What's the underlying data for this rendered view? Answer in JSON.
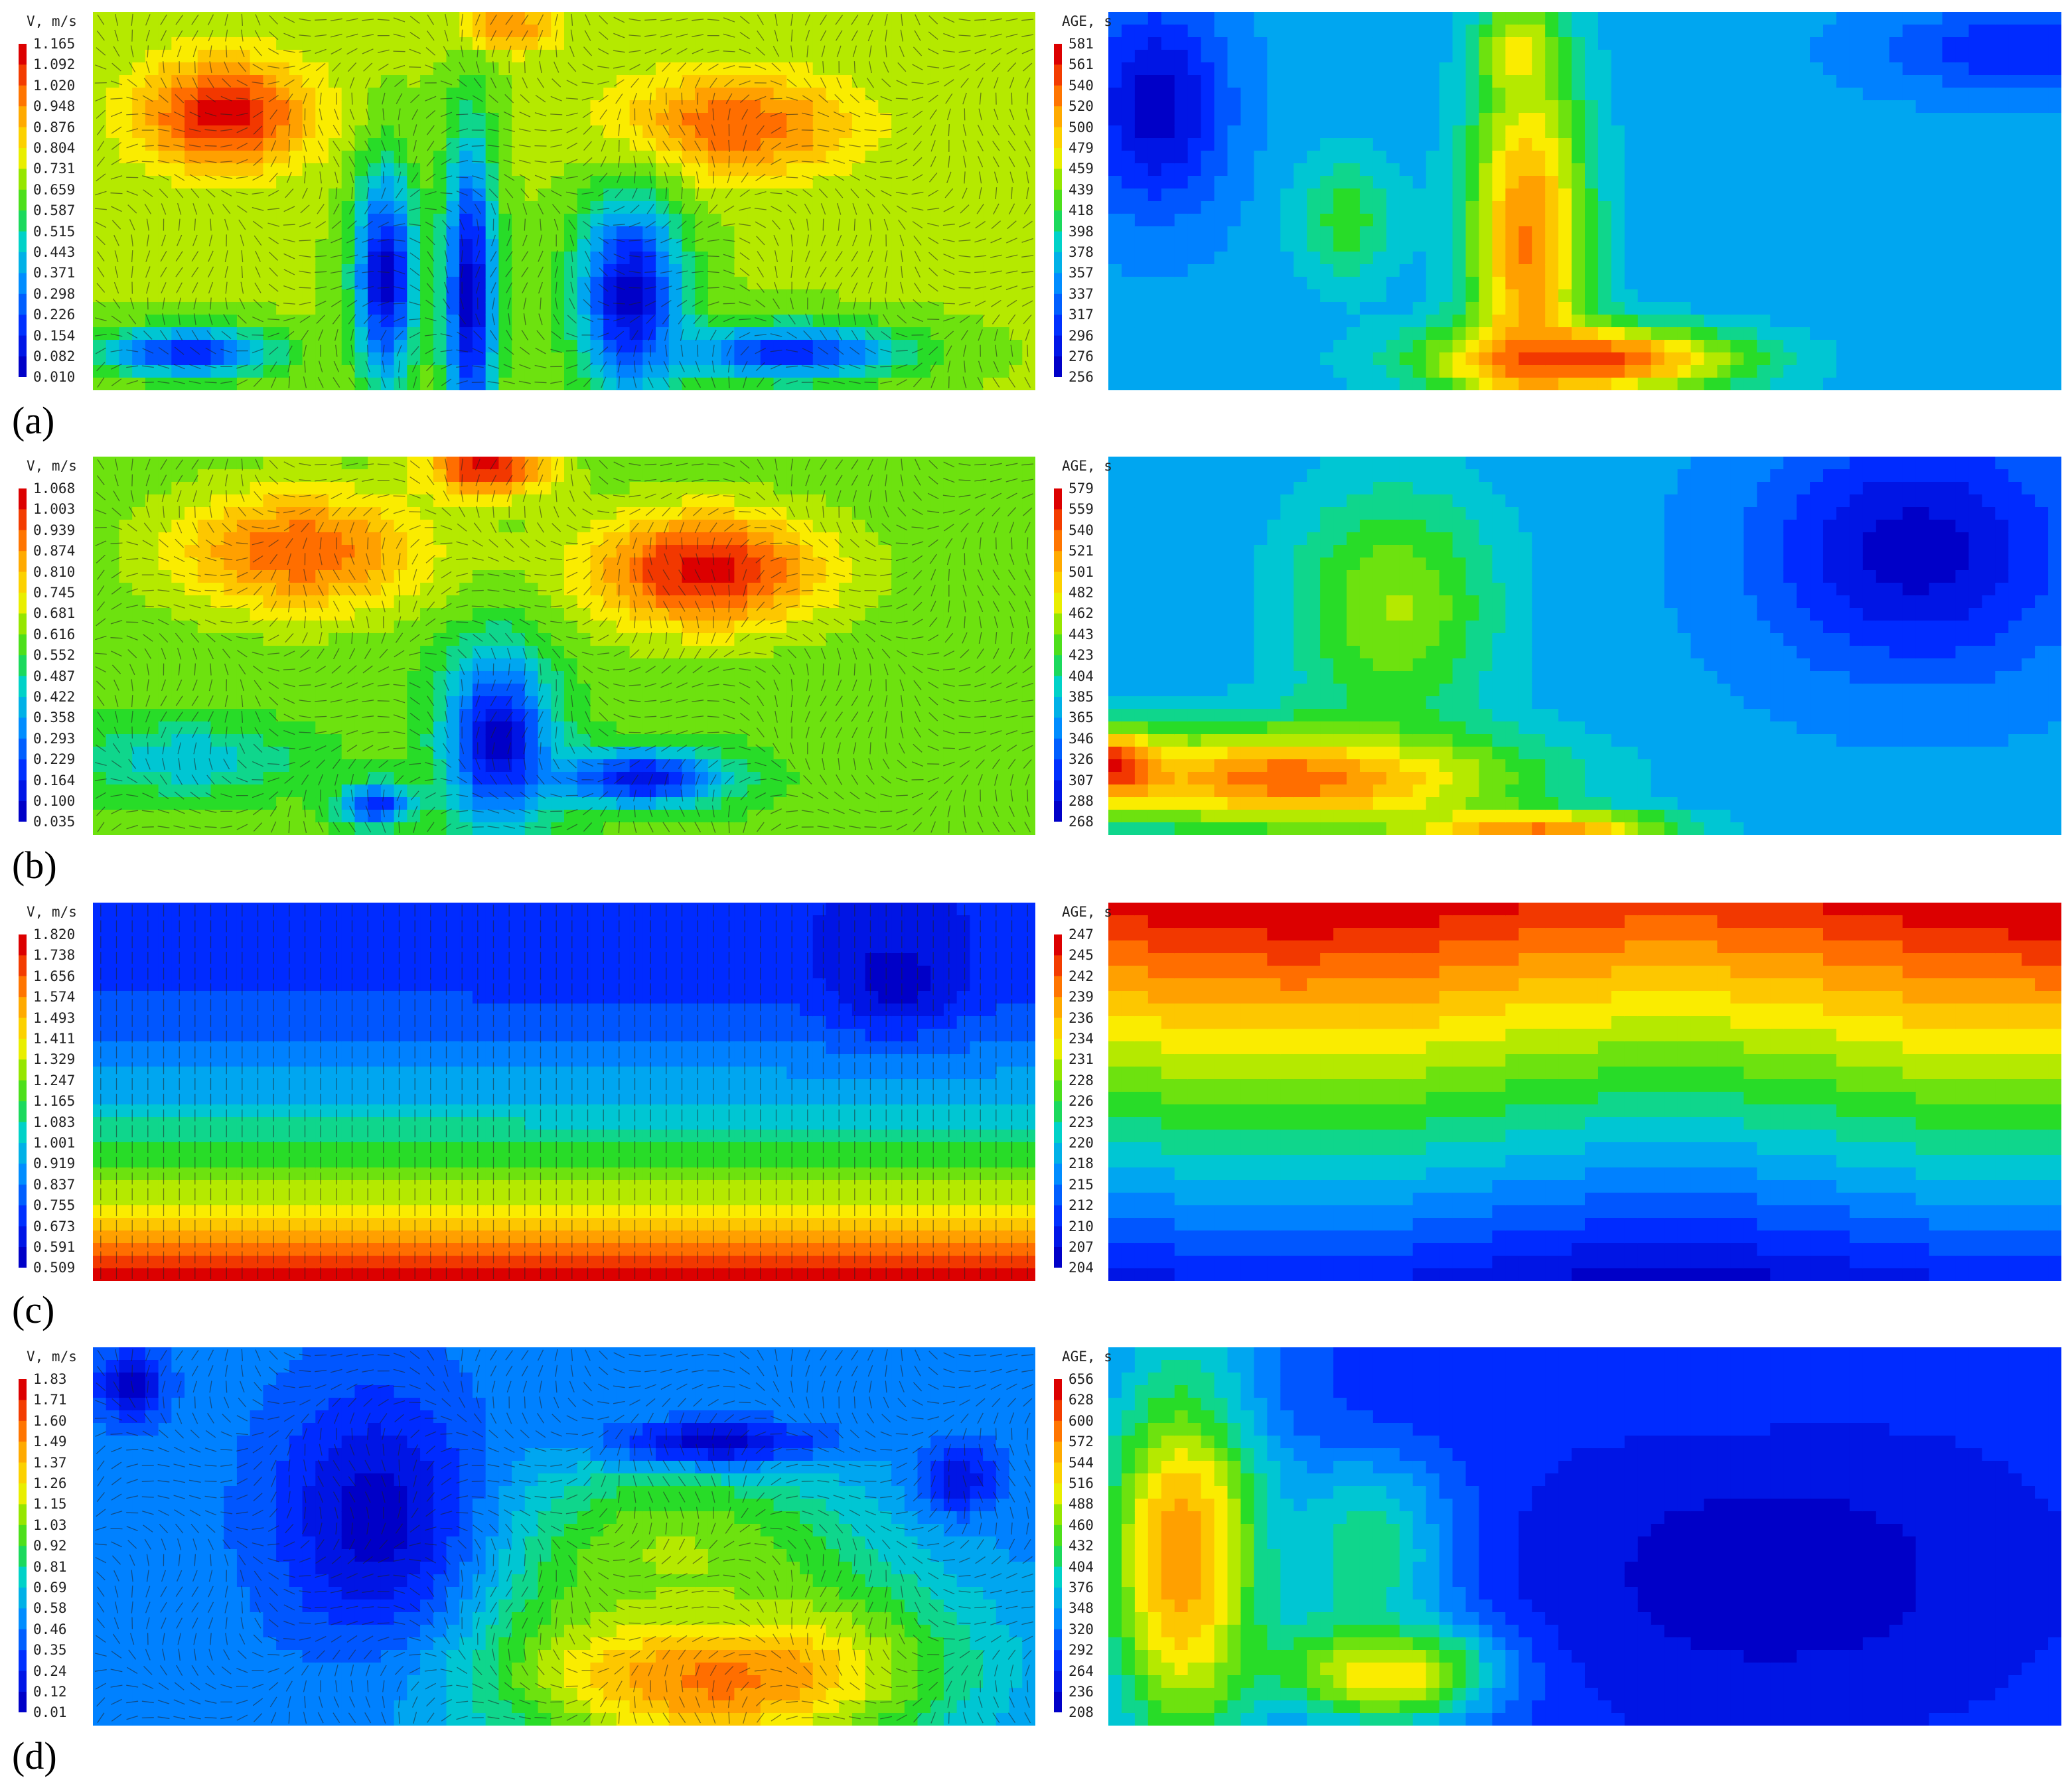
{
  "chart_data": [
    {
      "type": "heatmap",
      "panel": "(a)",
      "velocity": {
        "legend_title": "V, m/s",
        "levels": [
          "1.165",
          "1.092",
          "1.020",
          "0.948",
          "0.876",
          "0.804",
          "0.731",
          "0.659",
          "0.587",
          "0.515",
          "0.443",
          "0.371",
          "0.298",
          "0.226",
          "0.154",
          "0.082",
          "0.010"
        ],
        "blobs": [
          {
            "cx": 0.14,
            "cy": 0.27,
            "rx": 0.1,
            "ry": 0.16,
            "v": 1.0
          },
          {
            "cx": 0.68,
            "cy": 0.3,
            "rx": 0.14,
            "ry": 0.15,
            "v": 0.9
          },
          {
            "cx": 0.44,
            "cy": 0.04,
            "rx": 0.06,
            "ry": 0.07,
            "v": 0.85
          },
          {
            "cx": 0.4,
            "cy": 0.75,
            "rx": 0.03,
            "ry": 0.45,
            "v": 0.0
          },
          {
            "cx": 0.31,
            "cy": 0.7,
            "rx": 0.035,
            "ry": 0.3,
            "v": 0.0
          },
          {
            "cx": 0.57,
            "cy": 0.75,
            "rx": 0.06,
            "ry": 0.28,
            "v": 0.0
          },
          {
            "cx": 0.74,
            "cy": 0.9,
            "rx": 0.13,
            "ry": 0.08,
            "v": 0.1
          },
          {
            "cx": 0.1,
            "cy": 0.9,
            "rx": 0.1,
            "ry": 0.07,
            "v": 0.1
          }
        ],
        "base": 0.6
      },
      "age": {
        "legend_title": "AGE, s",
        "levels": [
          "581",
          "561",
          "540",
          "520",
          "500",
          "479",
          "459",
          "439",
          "418",
          "398",
          "378",
          "357",
          "337",
          "317",
          "296",
          "276",
          "256"
        ],
        "blobs": [
          {
            "cx": 0.44,
            "cy": 0.6,
            "rx": 0.07,
            "ry": 0.55,
            "v": 0.85
          },
          {
            "cx": 0.5,
            "cy": 0.92,
            "rx": 0.18,
            "ry": 0.1,
            "v": 0.95
          },
          {
            "cx": 0.43,
            "cy": 0.1,
            "rx": 0.04,
            "ry": 0.12,
            "v": 0.7
          },
          {
            "cx": 0.05,
            "cy": 0.25,
            "rx": 0.08,
            "ry": 0.3,
            "v": 0.0
          },
          {
            "cx": 0.95,
            "cy": 0.1,
            "rx": 0.15,
            "ry": 0.12,
            "v": 0.1
          },
          {
            "cx": 0.25,
            "cy": 0.55,
            "rx": 0.06,
            "ry": 0.2,
            "v": 0.5
          }
        ],
        "base": 0.3
      }
    },
    {
      "type": "heatmap",
      "panel": "(b)",
      "velocity": {
        "legend_title": "V, m/s",
        "levels": [
          "1.068",
          "1.003",
          "0.939",
          "0.874",
          "0.810",
          "0.745",
          "0.681",
          "0.616",
          "0.552",
          "0.487",
          "0.422",
          "0.358",
          "0.293",
          "0.229",
          "0.164",
          "0.100",
          "0.035"
        ],
        "blobs": [
          {
            "cx": 0.22,
            "cy": 0.25,
            "rx": 0.15,
            "ry": 0.18,
            "v": 0.9
          },
          {
            "cx": 0.65,
            "cy": 0.3,
            "rx": 0.14,
            "ry": 0.17,
            "v": 1.0
          },
          {
            "cx": 0.42,
            "cy": 0.03,
            "rx": 0.07,
            "ry": 0.08,
            "v": 1.0
          },
          {
            "cx": 0.43,
            "cy": 0.75,
            "rx": 0.06,
            "ry": 0.25,
            "v": 0.0
          },
          {
            "cx": 0.58,
            "cy": 0.85,
            "rx": 0.1,
            "ry": 0.08,
            "v": 0.05
          },
          {
            "cx": 0.3,
            "cy": 0.92,
            "rx": 0.04,
            "ry": 0.06,
            "v": 0.1
          },
          {
            "cx": 0.1,
            "cy": 0.8,
            "rx": 0.12,
            "ry": 0.1,
            "v": 0.35
          }
        ],
        "base": 0.55
      },
      "age": {
        "legend_title": "AGE, s",
        "levels": [
          "579",
          "559",
          "540",
          "521",
          "501",
          "482",
          "462",
          "443",
          "423",
          "404",
          "385",
          "365",
          "346",
          "326",
          "307",
          "288",
          "268"
        ],
        "blobs": [
          {
            "cx": 0.2,
            "cy": 0.85,
            "rx": 0.25,
            "ry": 0.15,
            "v": 0.9
          },
          {
            "cx": 0.0,
            "cy": 0.82,
            "rx": 0.06,
            "ry": 0.1,
            "v": 1.0
          },
          {
            "cx": 0.3,
            "cy": 0.4,
            "rx": 0.12,
            "ry": 0.35,
            "v": 0.6
          },
          {
            "cx": 0.85,
            "cy": 0.25,
            "rx": 0.18,
            "ry": 0.35,
            "v": 0.0
          },
          {
            "cx": 0.04,
            "cy": 0.3,
            "rx": 0.05,
            "ry": 0.25,
            "v": 0.3
          },
          {
            "cx": 0.45,
            "cy": 0.98,
            "rx": 0.15,
            "ry": 0.05,
            "v": 0.85
          }
        ],
        "base": 0.3
      }
    },
    {
      "type": "heatmap",
      "panel": "(c)",
      "velocity": {
        "legend_title": "V, m/s",
        "levels": [
          "1.820",
          "1.738",
          "1.656",
          "1.574",
          "1.493",
          "1.411",
          "1.329",
          "1.247",
          "1.165",
          "1.083",
          "1.001",
          "0.919",
          "0.837",
          "0.755",
          "0.673",
          "0.591",
          "0.509"
        ],
        "blobs": [
          {
            "cx": 0.85,
            "cy": 0.2,
            "rx": 0.08,
            "ry": 0.15,
            "v": 0.0
          }
        ],
        "gradient": "bottom-high",
        "base": 0.5
      },
      "age": {
        "legend_title": "AGE, s",
        "levels": [
          "247",
          "245",
          "242",
          "239",
          "236",
          "234",
          "231",
          "228",
          "226",
          "223",
          "220",
          "218",
          "215",
          "212",
          "210",
          "207",
          "204"
        ],
        "blobs": [],
        "gradient": "top-high",
        "base": 0.5
      }
    },
    {
      "type": "heatmap",
      "panel": "(d)",
      "velocity": {
        "legend_title": "V, m/s",
        "levels": [
          "1.83",
          "1.71",
          "1.60",
          "1.49",
          "1.37",
          "1.26",
          "1.15",
          "1.03",
          "0.92",
          "0.81",
          "0.69",
          "0.58",
          "0.46",
          "0.35",
          "0.24",
          "0.12",
          "0.01"
        ],
        "blobs": [
          {
            "cx": 0.66,
            "cy": 0.85,
            "rx": 0.25,
            "ry": 0.25,
            "v": 0.95
          },
          {
            "cx": 0.62,
            "cy": 0.55,
            "rx": 0.22,
            "ry": 0.3,
            "v": 0.6
          },
          {
            "cx": 0.3,
            "cy": 0.45,
            "rx": 0.12,
            "ry": 0.38,
            "v": 0.0
          },
          {
            "cx": 0.66,
            "cy": 0.25,
            "rx": 0.13,
            "ry": 0.07,
            "v": 0.0
          },
          {
            "cx": 0.04,
            "cy": 0.1,
            "rx": 0.04,
            "ry": 0.1,
            "v": 0.0
          },
          {
            "cx": 0.92,
            "cy": 0.35,
            "rx": 0.05,
            "ry": 0.1,
            "v": 0.05
          }
        ],
        "base": 0.25
      },
      "age": {
        "legend_title": "AGE, s",
        "levels": [
          "656",
          "628",
          "600",
          "572",
          "544",
          "516",
          "488",
          "460",
          "432",
          "404",
          "376",
          "348",
          "320",
          "292",
          "264",
          "236",
          "208"
        ],
        "blobs": [
          {
            "cx": 0.08,
            "cy": 0.55,
            "rx": 0.1,
            "ry": 0.6,
            "v": 0.85
          },
          {
            "cx": 0.3,
            "cy": 0.85,
            "rx": 0.12,
            "ry": 0.15,
            "v": 0.95
          },
          {
            "cx": 0.28,
            "cy": 0.55,
            "rx": 0.1,
            "ry": 0.3,
            "v": 0.55
          },
          {
            "cx": 0.7,
            "cy": 0.6,
            "rx": 0.35,
            "ry": 0.5,
            "v": 0.0
          },
          {
            "cx": 0.6,
            "cy": 0.15,
            "rx": 0.4,
            "ry": 0.15,
            "v": 0.1
          }
        ],
        "base": 0.15
      }
    }
  ]
}
